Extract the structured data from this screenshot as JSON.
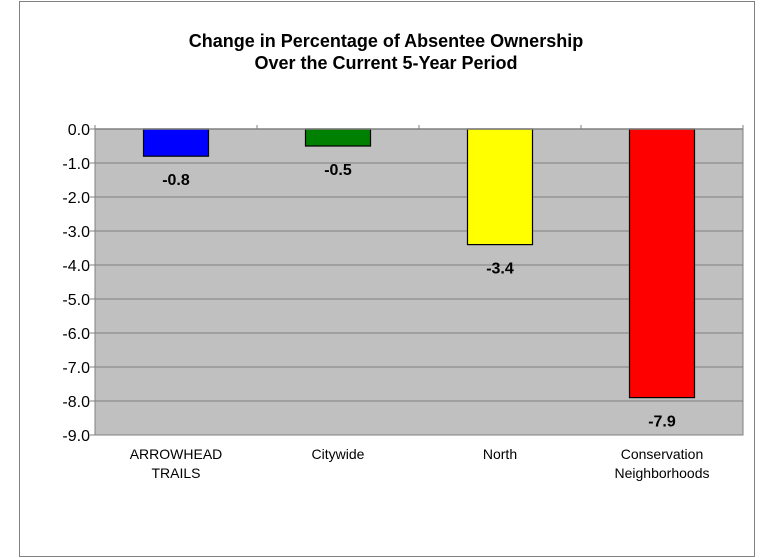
{
  "chart_data": {
    "type": "bar",
    "title_lines": [
      "Change in Percentage of Absentee Ownership",
      "Over the Current 5-Year Period"
    ],
    "categories": [
      [
        "ARROWHEAD",
        "TRAILS"
      ],
      [
        "Citywide"
      ],
      [
        "North"
      ],
      [
        "Conservation",
        "Neighborhoods"
      ]
    ],
    "values": [
      -0.8,
      -0.5,
      -3.4,
      -7.9
    ],
    "value_labels": [
      "-0.8",
      "-0.5",
      "-3.4",
      "-7.9"
    ],
    "colors": [
      "#0000ff",
      "#008000",
      "#ffff00",
      "#ff0000"
    ],
    "ylim": [
      -9.0,
      0.0
    ],
    "y_ticks": [
      "0.0",
      "-1.0",
      "-2.0",
      "-3.0",
      "-4.0",
      "-5.0",
      "-6.0",
      "-7.0",
      "-8.0",
      "-9.0"
    ],
    "grid": true,
    "plot_background": "#c0c0c0",
    "legend": "none",
    "xlabel": "",
    "ylabel": ""
  }
}
